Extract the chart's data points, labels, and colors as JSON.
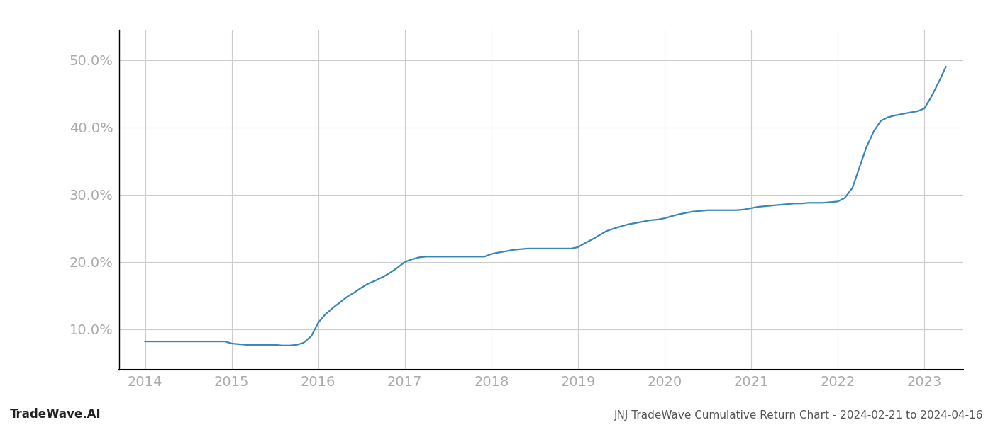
{
  "title": "JNJ TradeWave Cumulative Return Chart - 2024-02-21 to 2024-04-16",
  "watermark": "TradeWave.AI",
  "line_color": "#3a86b8",
  "background_color": "#ffffff",
  "grid_color": "#cccccc",
  "x_values": [
    2014.0,
    2014.08,
    2014.17,
    2014.25,
    2014.33,
    2014.42,
    2014.5,
    2014.58,
    2014.67,
    2014.75,
    2014.83,
    2014.92,
    2015.0,
    2015.08,
    2015.17,
    2015.25,
    2015.33,
    2015.42,
    2015.5,
    2015.58,
    2015.67,
    2015.75,
    2015.83,
    2015.92,
    2016.0,
    2016.08,
    2016.17,
    2016.25,
    2016.33,
    2016.42,
    2016.5,
    2016.58,
    2016.67,
    2016.75,
    2016.83,
    2016.92,
    2017.0,
    2017.08,
    2017.17,
    2017.25,
    2017.33,
    2017.42,
    2017.5,
    2017.58,
    2017.67,
    2017.75,
    2017.83,
    2017.92,
    2018.0,
    2018.08,
    2018.17,
    2018.25,
    2018.33,
    2018.42,
    2018.5,
    2018.58,
    2018.67,
    2018.75,
    2018.83,
    2018.92,
    2019.0,
    2019.08,
    2019.17,
    2019.25,
    2019.33,
    2019.42,
    2019.5,
    2019.58,
    2019.67,
    2019.75,
    2019.83,
    2019.92,
    2020.0,
    2020.08,
    2020.17,
    2020.25,
    2020.33,
    2020.42,
    2020.5,
    2020.58,
    2020.67,
    2020.75,
    2020.83,
    2020.92,
    2021.0,
    2021.08,
    2021.17,
    2021.25,
    2021.33,
    2021.42,
    2021.5,
    2021.58,
    2021.67,
    2021.75,
    2021.83,
    2021.92,
    2022.0,
    2022.08,
    2022.17,
    2022.25,
    2022.33,
    2022.42,
    2022.5,
    2022.58,
    2022.67,
    2022.75,
    2022.83,
    2022.92,
    2023.0,
    2023.08,
    2023.17,
    2023.25
  ],
  "y_values": [
    0.082,
    0.082,
    0.082,
    0.082,
    0.082,
    0.082,
    0.082,
    0.082,
    0.082,
    0.082,
    0.082,
    0.082,
    0.079,
    0.078,
    0.077,
    0.077,
    0.077,
    0.077,
    0.077,
    0.076,
    0.076,
    0.077,
    0.08,
    0.09,
    0.11,
    0.122,
    0.132,
    0.14,
    0.148,
    0.155,
    0.162,
    0.168,
    0.173,
    0.178,
    0.184,
    0.192,
    0.2,
    0.204,
    0.207,
    0.208,
    0.208,
    0.208,
    0.208,
    0.208,
    0.208,
    0.208,
    0.208,
    0.208,
    0.212,
    0.214,
    0.216,
    0.218,
    0.219,
    0.22,
    0.22,
    0.22,
    0.22,
    0.22,
    0.22,
    0.22,
    0.222,
    0.228,
    0.234,
    0.24,
    0.246,
    0.25,
    0.253,
    0.256,
    0.258,
    0.26,
    0.262,
    0.263,
    0.265,
    0.268,
    0.271,
    0.273,
    0.275,
    0.276,
    0.277,
    0.277,
    0.277,
    0.277,
    0.277,
    0.278,
    0.28,
    0.282,
    0.283,
    0.284,
    0.285,
    0.286,
    0.287,
    0.287,
    0.288,
    0.288,
    0.288,
    0.289,
    0.29,
    0.295,
    0.31,
    0.34,
    0.37,
    0.395,
    0.41,
    0.415,
    0.418,
    0.42,
    0.422,
    0.424,
    0.428,
    0.445,
    0.468,
    0.49
  ],
  "x_ticks": [
    2014,
    2015,
    2016,
    2017,
    2018,
    2019,
    2020,
    2021,
    2022,
    2023
  ],
  "x_tick_labels": [
    "2014",
    "2015",
    "2016",
    "2017",
    "2018",
    "2019",
    "2020",
    "2021",
    "2022",
    "2023"
  ],
  "y_ticks": [
    0.1,
    0.2,
    0.3,
    0.4,
    0.5
  ],
  "y_tick_labels": [
    "10.0%",
    "20.0%",
    "30.0%",
    "40.0%",
    "50.0%"
  ],
  "xlim": [
    2013.7,
    2023.45
  ],
  "ylim": [
    0.04,
    0.545
  ],
  "line_width": 1.6
}
